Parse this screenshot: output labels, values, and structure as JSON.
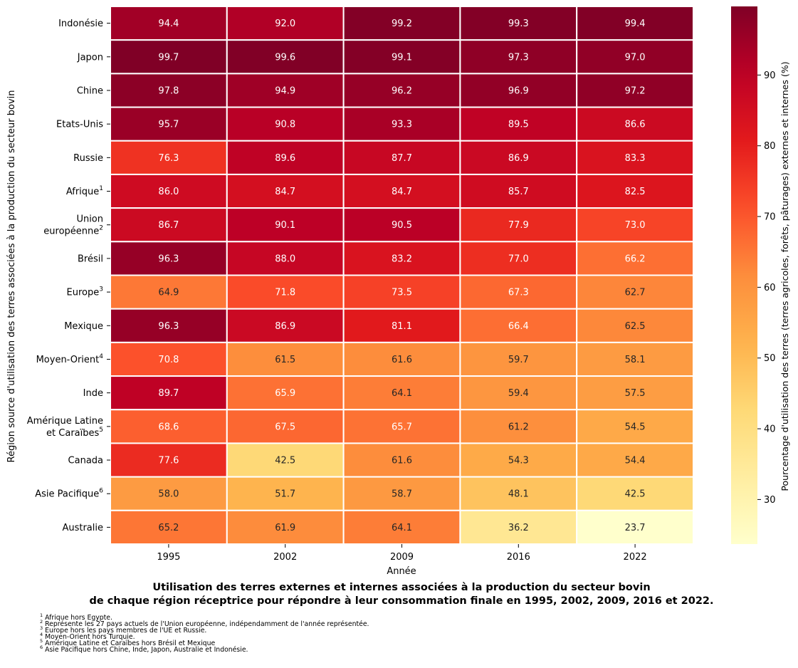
{
  "chart_data": {
    "type": "heatmap",
    "title_lines": [
      "Utilisation des terres externes et internes associées à la production du secteur bovin",
      "de chaque région réceptrice pour répondre à leur consommation finale en 1995, 2002, 2009, 2016 et 2022."
    ],
    "xlabel": "Année",
    "ylabel": "Région source d'utilisation des terres associées à la production du secteur bovin",
    "colorbar_label": "Pourcentage d'utilisation des terres (terres agricoles, forêts, pâturages) externes et internes (%)",
    "colorbar_ticks": [
      30,
      40,
      50,
      60,
      70,
      80,
      90
    ],
    "colorscale": "YlOrRd",
    "vmin": 23.7,
    "vmax": 99.7,
    "x": [
      "1995",
      "2002",
      "2009",
      "2016",
      "2022"
    ],
    "rows": [
      {
        "lines": [
          "Indonésie"
        ],
        "sup": ""
      },
      {
        "lines": [
          "Japon"
        ],
        "sup": ""
      },
      {
        "lines": [
          "Chine"
        ],
        "sup": ""
      },
      {
        "lines": [
          "Etats-Unis"
        ],
        "sup": ""
      },
      {
        "lines": [
          "Russie"
        ],
        "sup": ""
      },
      {
        "lines": [
          "Afrique"
        ],
        "sup": "1"
      },
      {
        "lines": [
          "Union",
          "européenne"
        ],
        "sup": "2"
      },
      {
        "lines": [
          "Brésil"
        ],
        "sup": ""
      },
      {
        "lines": [
          "Europe"
        ],
        "sup": "3"
      },
      {
        "lines": [
          "Mexique"
        ],
        "sup": ""
      },
      {
        "lines": [
          "Moyen-Orient"
        ],
        "sup": "4"
      },
      {
        "lines": [
          "Inde"
        ],
        "sup": ""
      },
      {
        "lines": [
          "Amérique Latine",
          "et Caraïbes"
        ],
        "sup": "5"
      },
      {
        "lines": [
          "Canada"
        ],
        "sup": ""
      },
      {
        "lines": [
          "Asie Pacifique"
        ],
        "sup": "6"
      },
      {
        "lines": [
          "Australie"
        ],
        "sup": ""
      }
    ],
    "values": [
      [
        94.4,
        92.0,
        99.2,
        99.3,
        99.4
      ],
      [
        99.7,
        99.6,
        99.1,
        97.3,
        97.0
      ],
      [
        97.8,
        94.9,
        96.2,
        96.9,
        97.2
      ],
      [
        95.7,
        90.8,
        93.3,
        89.5,
        86.6
      ],
      [
        76.3,
        89.6,
        87.7,
        86.9,
        83.3
      ],
      [
        86.0,
        84.7,
        84.7,
        85.7,
        82.5
      ],
      [
        86.7,
        90.1,
        90.5,
        77.9,
        73.0
      ],
      [
        96.3,
        88.0,
        83.2,
        77.0,
        66.2
      ],
      [
        64.9,
        71.8,
        73.5,
        67.3,
        62.7
      ],
      [
        96.3,
        86.9,
        81.1,
        66.4,
        62.5
      ],
      [
        70.8,
        61.5,
        61.6,
        59.7,
        58.1
      ],
      [
        89.7,
        65.9,
        64.1,
        59.4,
        57.5
      ],
      [
        68.6,
        67.5,
        65.7,
        61.2,
        54.5
      ],
      [
        77.6,
        42.5,
        61.6,
        54.3,
        54.4
      ],
      [
        58.0,
        51.7,
        58.7,
        48.1,
        42.5
      ],
      [
        65.2,
        61.9,
        64.1,
        36.2,
        23.7
      ]
    ]
  },
  "footnotes": [
    {
      "sup": "1",
      "text": " Afrique hors Egypte."
    },
    {
      "sup": "2",
      "text": " Représente les 27 pays actuels de l'Union européenne, indépendamment de l'année représentée."
    },
    {
      "sup": "3",
      "text": " Europe hors les pays membres de l'UE et Russie."
    },
    {
      "sup": "4",
      "text": " Moyen-Orient hors Turquie."
    },
    {
      "sup": "5",
      "text": " Amérique Latine et Caraïbes hors Brésil et Mexique"
    },
    {
      "sup": "6",
      "text": " Asie Pacifique hors Chine, Inde, Japon, Australie et Indonésie."
    }
  ]
}
